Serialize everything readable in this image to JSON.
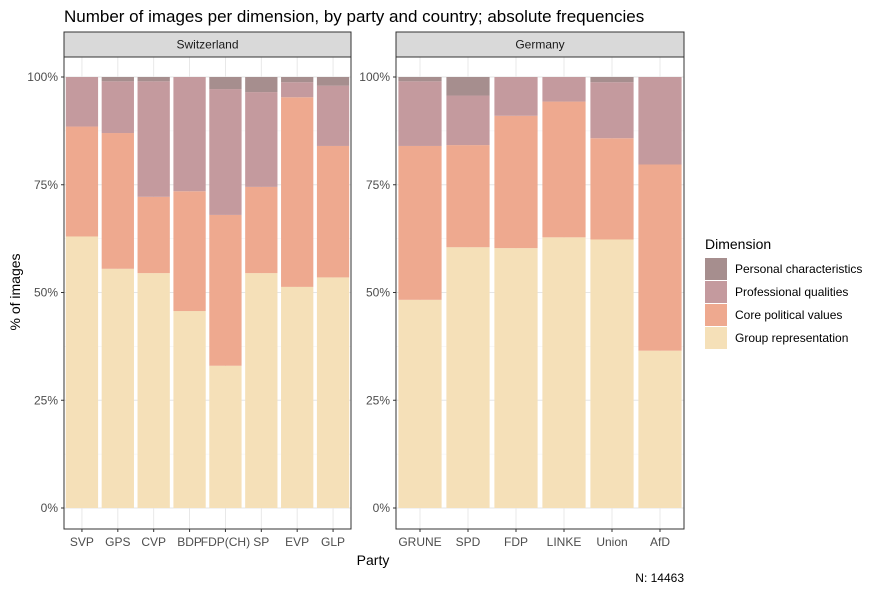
{
  "chart_data": {
    "type": "bar",
    "stacked": "percent",
    "title": "Number of images per dimension, by party and country; absolute frequencies",
    "xlabel": "Party",
    "ylabel": "% of images",
    "ylim": [
      0,
      1
    ],
    "y_ticks": [
      "0%",
      "25%",
      "50%",
      "75%",
      "100%"
    ],
    "grid": true,
    "legend_position": "right",
    "legend": {
      "title": "Dimension",
      "entries": [
        {
          "name": "Personal characteristics",
          "color": "#a68e8e"
        },
        {
          "name": "Professional qualities",
          "color": "#c49a9e"
        },
        {
          "name": "Core political values",
          "color": "#eea98f"
        },
        {
          "name": "Group representation",
          "color": "#f5e0b8"
        }
      ]
    },
    "caption": "N: 14463",
    "panels": [
      {
        "label": "Switzerland",
        "categories": [
          "SVP",
          "GPS",
          "CVP",
          "BDP",
          "FDP(CH)",
          "SP",
          "EVP",
          "GLP"
        ],
        "series": [
          {
            "name": "Group representation",
            "values": [
              0.63,
              0.555,
              0.545,
              0.457,
              0.33,
              0.545,
              0.513,
              0.535
            ]
          },
          {
            "name": "Core political values",
            "values": [
              0.255,
              0.315,
              0.177,
              0.278,
              0.35,
              0.2,
              0.44,
              0.305
            ]
          },
          {
            "name": "Professional qualities",
            "values": [
              0.115,
              0.12,
              0.268,
              0.265,
              0.292,
              0.22,
              0.035,
              0.14
            ]
          },
          {
            "name": "Personal characteristics",
            "values": [
              0,
              0.01,
              0.01,
              0,
              0.028,
              0.035,
              0.012,
              0.02
            ]
          }
        ]
      },
      {
        "label": "Germany",
        "categories": [
          "GRUNE",
          "SPD",
          "FDP",
          "LINKE",
          "Union",
          "AfD"
        ],
        "series": [
          {
            "name": "Group representation",
            "values": [
              0.483,
              0.605,
              0.603,
              0.628,
              0.623,
              0.365
            ]
          },
          {
            "name": "Core political values",
            "values": [
              0.357,
              0.237,
              0.307,
              0.315,
              0.235,
              0.432
            ]
          },
          {
            "name": "Professional qualities",
            "values": [
              0.15,
              0.115,
              0.09,
              0.057,
              0.13,
              0.203
            ]
          },
          {
            "name": "Personal characteristics",
            "values": [
              0.01,
              0.043,
              0,
              0,
              0.012,
              0
            ]
          }
        ]
      }
    ]
  }
}
